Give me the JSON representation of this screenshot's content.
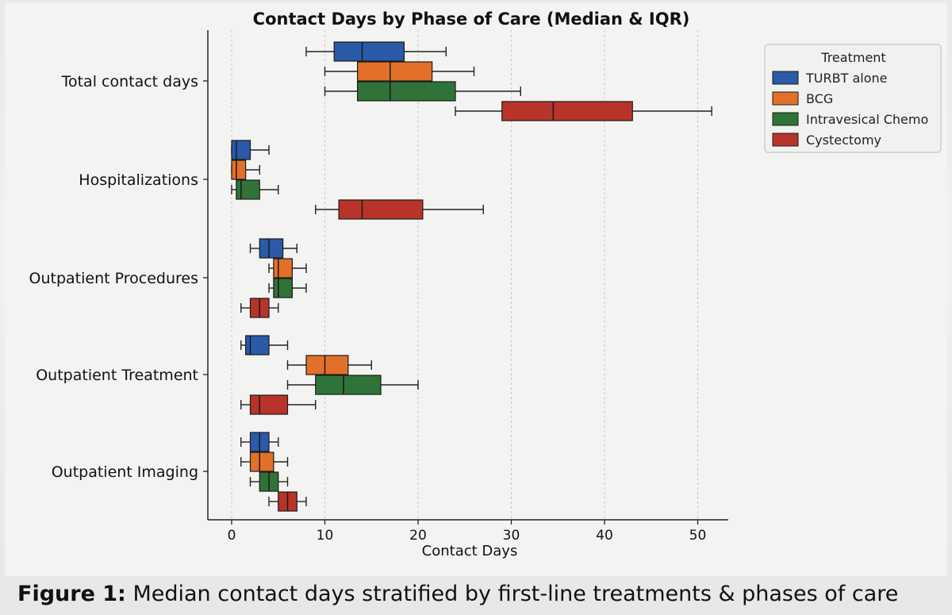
{
  "chart_data": {
    "type": "boxplot",
    "orientation": "horizontal",
    "title": "Contact Days by Phase of Care (Median & IQR)",
    "xlabel": "Contact Days",
    "ylabel": "",
    "xlim": [
      -2.5,
      53.5
    ],
    "xticks": [
      0,
      10,
      20,
      30,
      40,
      50
    ],
    "grid": "x-dashed",
    "legend": {
      "title": "Treatment",
      "placement": "right",
      "entries": [
        "TURBT alone",
        "BCG",
        "Intravesical Chemo",
        "Cystectomy"
      ]
    },
    "categories": [
      "Total contact days",
      "Hospitalizations",
      "Outpatient Procedures",
      "Outpatient Treatment",
      "Outpatient Imaging"
    ],
    "series": [
      {
        "name": "TURBT alone",
        "color": "#2a5aa8",
        "boxes": [
          {
            "whislo": 8,
            "q1": 11,
            "med": 14,
            "q3": 18.5,
            "whishi": 23
          },
          {
            "whislo": 0,
            "q1": 0,
            "med": 0.5,
            "q3": 2,
            "whishi": 4
          },
          {
            "whislo": 2,
            "q1": 3,
            "med": 4,
            "q3": 5.5,
            "whishi": 7
          },
          {
            "whislo": 1,
            "q1": 1.5,
            "med": 2,
            "q3": 4,
            "whishi": 6
          },
          {
            "whislo": 1,
            "q1": 2,
            "med": 3,
            "q3": 4,
            "whishi": 5
          }
        ]
      },
      {
        "name": "BCG",
        "color": "#e27028",
        "boxes": [
          {
            "whislo": 10,
            "q1": 13.5,
            "med": 17,
            "q3": 21.5,
            "whishi": 26
          },
          {
            "whislo": 0,
            "q1": 0,
            "med": 0.5,
            "q3": 1.5,
            "whishi": 3
          },
          {
            "whislo": 4,
            "q1": 4.5,
            "med": 5,
            "q3": 6.5,
            "whishi": 8
          },
          {
            "whislo": 6,
            "q1": 8,
            "med": 10,
            "q3": 12.5,
            "whishi": 15
          },
          {
            "whislo": 1,
            "q1": 2,
            "med": 3,
            "q3": 4.5,
            "whishi": 6
          }
        ]
      },
      {
        "name": "Intravesical Chemo",
        "color": "#2f7338",
        "boxes": [
          {
            "whislo": 10,
            "q1": 13.5,
            "med": 17,
            "q3": 24,
            "whishi": 31
          },
          {
            "whislo": 0,
            "q1": 0.5,
            "med": 1,
            "q3": 3,
            "whishi": 5
          },
          {
            "whislo": 4,
            "q1": 4.5,
            "med": 5,
            "q3": 6.5,
            "whishi": 8
          },
          {
            "whislo": 6,
            "q1": 9,
            "med": 12,
            "q3": 16,
            "whishi": 20
          },
          {
            "whislo": 2,
            "q1": 3,
            "med": 4,
            "q3": 5,
            "whishi": 6
          }
        ]
      },
      {
        "name": "Cystectomy",
        "color": "#b8342a",
        "boxes": [
          {
            "whislo": 24,
            "q1": 29,
            "med": 34.5,
            "q3": 43,
            "whishi": 51.5
          },
          {
            "whislo": 9,
            "q1": 11.5,
            "med": 14,
            "q3": 20.5,
            "whishi": 27
          },
          {
            "whislo": 1,
            "q1": 2,
            "med": 3,
            "q3": 4,
            "whishi": 5
          },
          {
            "whislo": 1,
            "q1": 2,
            "med": 3,
            "q3": 6,
            "whishi": 9
          },
          {
            "whislo": 4,
            "q1": 5,
            "med": 6,
            "q3": 7,
            "whishi": 8
          }
        ]
      }
    ]
  },
  "caption": {
    "label": "Figure 1:",
    "text": " Median contact days stratified by first-line treatments & phases of care"
  }
}
